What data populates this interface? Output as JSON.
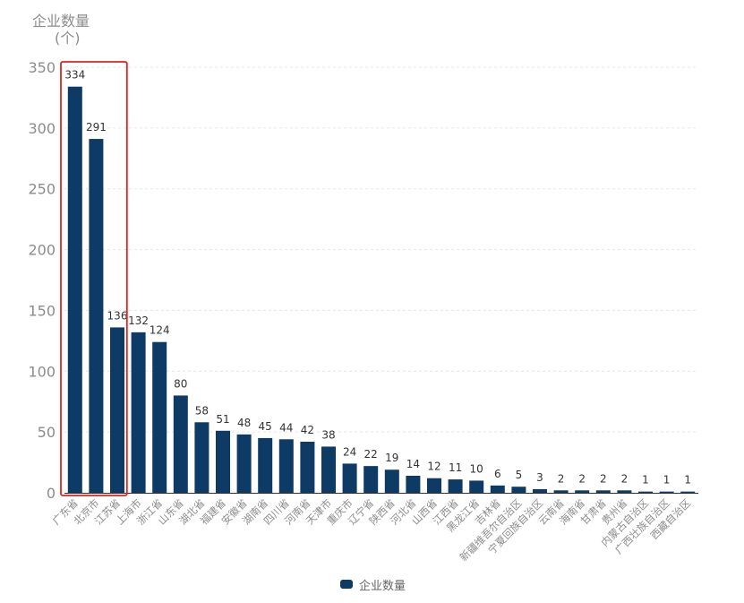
{
  "chart_data": {
    "type": "bar",
    "ylabel": "企业数量",
    "ylabel_unit": "(个)",
    "ylim": [
      0,
      350
    ],
    "yticks": [
      0,
      50,
      100,
      150,
      200,
      250,
      300,
      350
    ],
    "grid": true,
    "legend_position": "bottom-center",
    "categories": [
      "广东省",
      "北京市",
      "江苏省",
      "上海市",
      "浙江省",
      "山东省",
      "湖北省",
      "福建省",
      "安徽省",
      "湖南省",
      "四川省",
      "河南省",
      "天津市",
      "重庆市",
      "辽宁省",
      "陕西省",
      "河北省",
      "山西省",
      "江西省",
      "黑龙江省",
      "吉林省",
      "新疆维吾尔自治区",
      "宁夏回族自治区",
      "云南省",
      "海南省",
      "甘肃省",
      "贵州省",
      "内蒙古自治区",
      "广西壮族自治区",
      "西藏自治区"
    ],
    "series": [
      {
        "name": "企业数量",
        "color": "#0e3a66",
        "values": [
          334,
          291,
          136,
          132,
          124,
          80,
          58,
          51,
          48,
          45,
          44,
          42,
          38,
          24,
          22,
          19,
          14,
          12,
          11,
          10,
          6,
          5,
          3,
          2,
          2,
          2,
          2,
          1,
          1,
          1
        ]
      }
    ],
    "highlight": {
      "categories": [
        "广东省",
        "北京市",
        "江苏省"
      ],
      "color": "#e0241b"
    }
  },
  "legend": {
    "label": "企业数量",
    "color": "#0e3a66"
  }
}
